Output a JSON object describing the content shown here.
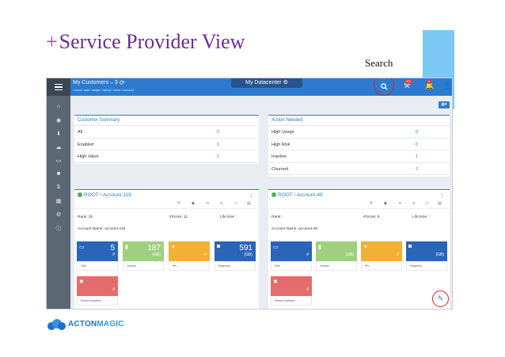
{
  "slide": {
    "plus": "+",
    "title": "Service Provider View",
    "search_callout": "Search"
  },
  "topbar": {
    "title": "My Customers – 3",
    "path": "/ cloud / add / usage / hybrid / home / account",
    "datacenter_tab": "My Datacenter",
    "badge_tools": "376",
    "badge_bell": "4"
  },
  "customer_summary": {
    "title": "Customer Summary",
    "rows": [
      {
        "label": "All",
        "value": "3"
      },
      {
        "label": "Enabled",
        "value": "1"
      },
      {
        "label": "High Value",
        "value": "1"
      }
    ]
  },
  "action_needed": {
    "title": "Action Needed",
    "rows": [
      {
        "label": "High Usage",
        "value": "0"
      },
      {
        "label": "High Risk",
        "value": "0"
      },
      {
        "label": "Inactive",
        "value": "1"
      },
      {
        "label": "Churned",
        "value": "2"
      }
    ]
  },
  "account_left": {
    "title": "ROOT / Account-119",
    "rank": "Rank: 31",
    "score": "#Score: 11",
    "lifetime": "Life time :",
    "account_name": "Account Name: account-119",
    "tiles": [
      {
        "value": "5",
        "unit": "#",
        "label": "VMs",
        "color": "#2a65b8"
      },
      {
        "value": "187",
        "unit": "(GB)",
        "label": "Volume",
        "color": "#9ed07f"
      },
      {
        "value": "",
        "unit": "#",
        "label": "IPs",
        "color": "#f2b134"
      },
      {
        "value": "591",
        "unit": "(GB)",
        "label": "Snapshot",
        "color": "#2a65b8"
      },
      {
        "value": "",
        "unit": "#",
        "label": "Recent Activities",
        "color": "#e56c6c"
      }
    ]
  },
  "account_right": {
    "title": "ROOT / Account-49",
    "rank": "Rank:",
    "score": "#Score: 5",
    "lifetime": "Life time :",
    "account_name": "Account Name: account-49",
    "tiles": [
      {
        "value": "",
        "unit": "#",
        "label": "VMs",
        "color": "#2a65b8"
      },
      {
        "value": "",
        "unit": "(GB)",
        "label": "Volume",
        "color": "#9ed07f"
      },
      {
        "value": "",
        "unit": "#",
        "label": "IPs",
        "color": "#f2b134"
      },
      {
        "value": "",
        "unit": "(GB)",
        "label": "Snapshot",
        "color": "#2a65b8"
      },
      {
        "value": "",
        "unit": "#",
        "label": "Recent Activities",
        "color": "#e56c6c"
      }
    ]
  },
  "logo": {
    "part1": "ACTON",
    "part2": "MAGIC"
  }
}
